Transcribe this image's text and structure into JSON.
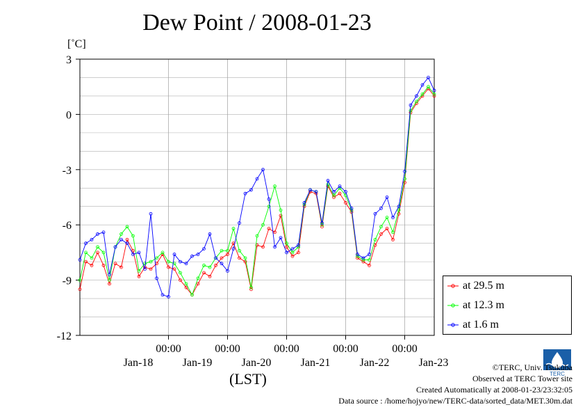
{
  "title": "Dew Point / 2008-01-23",
  "y_unit": "[˚C]",
  "x_axis_label": "(LST)",
  "credits": {
    "copyright": "©TERC, Univ. Tsukuba",
    "observed": "Observed at TERC Tower site",
    "created": "Created Automatically at 2008-01-23/23:32:05",
    "source": "Data source : /home/hojyo/new/TERC-data/sorted_data/MET.30m.dat"
  },
  "logo_text": "TERC",
  "chart_data": {
    "type": "line",
    "title": "Dew Point / 2008-01-23",
    "xlabel": "(LST)",
    "ylabel": "[˚C]",
    "ylim": [
      -12,
      3
    ],
    "y_ticks": [
      3,
      0,
      -3,
      -6,
      -9,
      -12
    ],
    "y_tick_labels": [
      "3",
      "0",
      "-3",
      "-6",
      "-9",
      "-12"
    ],
    "xlim": [
      -0.5,
      5.5
    ],
    "x_ticks": [
      1,
      2,
      3,
      4,
      5
    ],
    "x_tick_labels": [
      "00:00",
      "00:00",
      "00:00",
      "00:00",
      "00:00"
    ],
    "x_day_positions": [
      0.5,
      1.5,
      2.5,
      3.5,
      4.5,
      5.5
    ],
    "x_day_labels": [
      "Jan-18",
      "Jan-19",
      "Jan-20",
      "Jan-21",
      "Jan-22",
      "Jan-23"
    ],
    "grid": true,
    "legend_position": "right",
    "x": [
      -0.5,
      -0.4,
      -0.3,
      -0.2,
      -0.1,
      0.0,
      0.1,
      0.2,
      0.3,
      0.4,
      0.5,
      0.6,
      0.7,
      0.8,
      0.9,
      1.0,
      1.1,
      1.2,
      1.3,
      1.4,
      1.5,
      1.6,
      1.7,
      1.8,
      1.9,
      2.0,
      2.1,
      2.2,
      2.3,
      2.4,
      2.5,
      2.6,
      2.7,
      2.8,
      2.9,
      3.0,
      3.1,
      3.2,
      3.3,
      3.4,
      3.5,
      3.6,
      3.7,
      3.8,
      3.9,
      4.0,
      4.1,
      4.2,
      4.3,
      4.4,
      4.5,
      4.6,
      4.7,
      4.8,
      4.9,
      5.0,
      5.1,
      5.2,
      5.3,
      5.4,
      5.5
    ],
    "series": [
      {
        "name": "at 29.5 m",
        "color": "#ff0000",
        "values": [
          -9.5,
          -8.0,
          -8.2,
          -7.5,
          -8.2,
          -9.2,
          -8.1,
          -8.3,
          -6.8,
          -7.4,
          -8.8,
          -8.3,
          -8.4,
          -8.1,
          -7.6,
          -8.3,
          -8.4,
          -9.0,
          -9.4,
          -9.8,
          -9.2,
          -8.6,
          -8.8,
          -8.2,
          -7.8,
          -7.6,
          -7.0,
          -7.8,
          -8.0,
          -9.5,
          -7.1,
          -7.2,
          -6.2,
          -6.4,
          -5.5,
          -7.2,
          -7.7,
          -7.5,
          -5.0,
          -4.2,
          -4.3,
          -6.1,
          -3.9,
          -4.5,
          -4.3,
          -4.8,
          -5.3,
          -7.8,
          -8.0,
          -8.2,
          -7.1,
          -6.5,
          -6.2,
          -6.8,
          -5.4,
          -3.7,
          0.1,
          0.6,
          1.0,
          1.4,
          1.0
        ]
      },
      {
        "name": "at 12.3 m",
        "color": "#00ff00",
        "values": [
          -9.0,
          -7.5,
          -7.8,
          -7.2,
          -7.5,
          -9.0,
          -7.2,
          -6.5,
          -6.1,
          -6.6,
          -8.5,
          -8.1,
          -8.0,
          -7.8,
          -7.5,
          -8.0,
          -8.1,
          -8.6,
          -9.2,
          -9.8,
          -8.9,
          -8.2,
          -8.3,
          -7.8,
          -7.4,
          -7.4,
          -6.2,
          -7.4,
          -7.8,
          -9.4,
          -6.6,
          -6.0,
          -5.0,
          -3.9,
          -5.2,
          -7.0,
          -7.5,
          -7.2,
          -4.9,
          -4.1,
          -4.2,
          -6.0,
          -3.8,
          -4.4,
          -4.0,
          -4.4,
          -5.2,
          -7.7,
          -7.9,
          -7.9,
          -6.8,
          -6.1,
          -5.6,
          -6.4,
          -5.2,
          -3.5,
          0.2,
          0.7,
          1.1,
          1.5,
          1.1
        ]
      },
      {
        "name": "at 1.6 m",
        "color": "#0000ff",
        "values": [
          -7.9,
          -7.0,
          -6.8,
          -6.5,
          -6.4,
          -8.7,
          -7.2,
          -6.8,
          -7.0,
          -7.6,
          -7.5,
          -8.4,
          -5.4,
          -8.9,
          -9.8,
          -9.9,
          -7.6,
          -8.0,
          -8.1,
          -7.7,
          -7.6,
          -7.3,
          -6.5,
          -7.8,
          -8.1,
          -8.5,
          -7.3,
          -5.9,
          -4.3,
          -4.1,
          -3.5,
          -3.0,
          -4.6,
          -7.2,
          -6.7,
          -7.5,
          -7.3,
          -7.1,
          -4.8,
          -4.1,
          -4.2,
          -5.9,
          -3.6,
          -4.2,
          -3.9,
          -4.2,
          -5.1,
          -7.6,
          -7.8,
          -7.6,
          -5.4,
          -5.1,
          -4.5,
          -5.6,
          -5.0,
          -3.1,
          0.5,
          1.0,
          1.6,
          2.0,
          1.3
        ]
      }
    ]
  }
}
